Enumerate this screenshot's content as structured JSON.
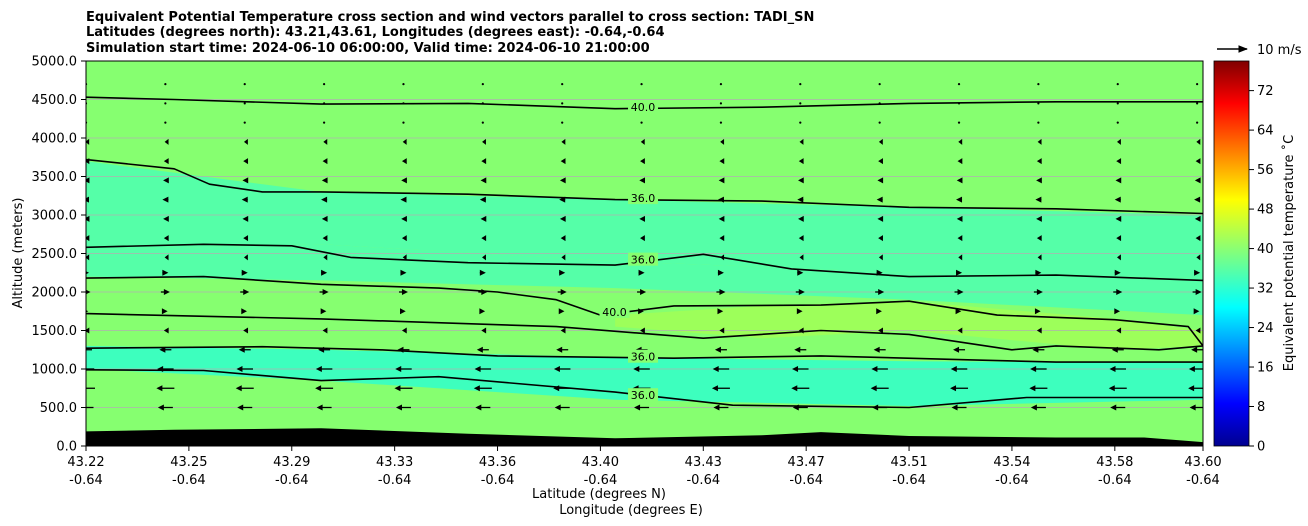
{
  "chart_data": {
    "type": "contour-cross-section",
    "title_lines": [
      "Equivalent Potential Temperature cross section and wind vectors parallel to cross section: TADI_SN",
      "Latitudes (degrees north): 43.21,43.61, Longitudes (degrees east): -0.64,-0.64",
      "Simulation start time: 2024-06-10 06:00:00, Valid time: 2024-06-10 21:00:00"
    ],
    "xlabel_lines": [
      "Latitude (degrees N)",
      "Longitude (degrees E)"
    ],
    "ylabel": "Altitude (meters)",
    "x_ticks": [
      {
        "lat": "43.22",
        "lon": "-0.64"
      },
      {
        "lat": "43.25",
        "lon": "-0.64"
      },
      {
        "lat": "43.29",
        "lon": "-0.64"
      },
      {
        "lat": "43.33",
        "lon": "-0.64"
      },
      {
        "lat": "43.36",
        "lon": "-0.64"
      },
      {
        "lat": "43.40",
        "lon": "-0.64"
      },
      {
        "lat": "43.43",
        "lon": "-0.64"
      },
      {
        "lat": "43.47",
        "lon": "-0.64"
      },
      {
        "lat": "43.51",
        "lon": "-0.64"
      },
      {
        "lat": "43.54",
        "lon": "-0.64"
      },
      {
        "lat": "43.58",
        "lon": "-0.64"
      },
      {
        "lat": "43.60",
        "lon": "-0.64"
      }
    ],
    "x_tick_values": [
      43.22,
      43.255,
      43.29,
      43.325,
      43.36,
      43.395,
      43.43,
      43.465,
      43.5,
      43.535,
      43.57,
      43.6
    ],
    "xlim": [
      43.22,
      43.6
    ],
    "y_ticks": [
      "0.0",
      "500.0",
      "1000.0",
      "1500.0",
      "2000.0",
      "2500.0",
      "3000.0",
      "3500.0",
      "4000.0",
      "4500.0",
      "5000.0"
    ],
    "ylim": [
      0,
      5000
    ],
    "grid": "horizontal",
    "colorbar": {
      "label": "Equivalent potential temperature ˚C",
      "ticks": [
        "0",
        "8",
        "16",
        "24",
        "32",
        "40",
        "48",
        "56",
        "64",
        "72"
      ],
      "range": [
        0,
        78
      ],
      "colormap": "jet"
    },
    "quiver_key": "10 m/s",
    "background_field_color": "#86ff70",
    "terrain_color": "#000000",
    "field_bands": [
      {
        "color": "#3dffbe",
        "theta_e": 33,
        "x": [
          43.22,
          43.3,
          43.4,
          43.5,
          43.6
        ],
        "y_top": [
          1300,
          1250,
          1150,
          1100,
          1080
        ],
        "y_bottom": [
          1000,
          850,
          600,
          520,
          600
        ]
      },
      {
        "color": "#55ffa8",
        "theta_e": 35,
        "x": [
          43.22,
          43.3,
          43.4,
          43.5,
          43.6
        ],
        "y_top": [
          2550,
          2620,
          2400,
          2250,
          2180
        ],
        "y_bottom": [
          2200,
          2150,
          2050,
          1900,
          1700
        ]
      },
      {
        "color": "#55ffa8",
        "theta_e": 35,
        "x": [
          43.22,
          43.3,
          43.4,
          43.5,
          43.6
        ],
        "y_top": [
          3700,
          3300,
          3200,
          3100,
          3000
        ],
        "y_bottom": [
          2550,
          2620,
          2400,
          2250,
          2180
        ]
      },
      {
        "color": "#9dff5a",
        "theta_e": 41,
        "x": [
          43.4,
          43.45,
          43.5,
          43.57,
          43.6
        ],
        "y_top": [
          1700,
          1820,
          1880,
          1650,
          1500
        ],
        "y_bottom": [
          1550,
          1400,
          1500,
          1250,
          1300
        ]
      }
    ],
    "contours": [
      {
        "level_label": "40.0",
        "x": [
          43.22,
          43.25,
          43.3,
          43.35,
          43.4,
          43.45,
          43.5,
          43.55,
          43.6
        ],
        "y": [
          4530,
          4500,
          4440,
          4450,
          4380,
          4400,
          4450,
          4470,
          4470
        ]
      },
      {
        "level_label": "36.0",
        "x": [
          43.22,
          43.25,
          43.262,
          43.28,
          43.3,
          43.35,
          43.4,
          43.45,
          43.5,
          43.55,
          43.6
        ],
        "y": [
          3720,
          3600,
          3400,
          3300,
          3300,
          3270,
          3200,
          3180,
          3100,
          3080,
          3020
        ]
      },
      {
        "level_label": "36.0",
        "x": [
          43.22,
          43.26,
          43.29,
          43.31,
          43.35,
          43.4,
          43.43,
          43.46,
          43.5,
          43.55,
          43.6
        ],
        "y": [
          2580,
          2620,
          2600,
          2450,
          2380,
          2350,
          2490,
          2300,
          2200,
          2220,
          2150
        ]
      },
      {
        "level_label": "40.0",
        "x": [
          43.22,
          43.26,
          43.3,
          43.34,
          43.36,
          43.38,
          43.395,
          43.42,
          43.47,
          43.5,
          43.53,
          43.57,
          43.595,
          43.6,
          43.585,
          43.55,
          43.535,
          43.5,
          43.47,
          43.43,
          43.38,
          43.3,
          43.22
        ],
        "y": [
          2180,
          2200,
          2100,
          2050,
          2000,
          1900,
          1700,
          1820,
          1830,
          1880,
          1700,
          1640,
          1550,
          1300,
          1250,
          1300,
          1250,
          1450,
          1500,
          1400,
          1550,
          1650,
          1720
        ]
      },
      {
        "level_label": "36.0",
        "x": [
          43.22,
          43.28,
          43.32,
          43.36,
          43.42,
          43.47,
          43.52,
          43.55,
          43.6
        ],
        "y": [
          1270,
          1290,
          1250,
          1170,
          1140,
          1170,
          1120,
          1090,
          1090
        ]
      },
      {
        "level_label": "36.0",
        "x": [
          43.22,
          43.26,
          43.3,
          43.34,
          43.4,
          43.44,
          43.5,
          43.54,
          43.6
        ],
        "y": [
          990,
          980,
          850,
          900,
          700,
          530,
          500,
          630,
          630
        ]
      }
    ],
    "contour_label_positions": [
      {
        "level_label": "40.0",
        "x": 43.4095,
        "y": 4400
      },
      {
        "level_label": "36.0",
        "x": 43.4095,
        "y": 3220
      },
      {
        "level_label": "36.0",
        "x": 43.4095,
        "y": 2420
      },
      {
        "level_label": "40.0",
        "x": 43.3998,
        "y": 1740
      },
      {
        "level_label": "36.0",
        "x": 43.4095,
        "y": 1160
      },
      {
        "level_label": "36.0",
        "x": 43.4095,
        "y": 660
      }
    ],
    "terrain": {
      "x": [
        43.22,
        43.25,
        43.3,
        43.35,
        43.4,
        43.45,
        43.47,
        43.5,
        43.55,
        43.58,
        43.6
      ],
      "y": [
        190,
        210,
        230,
        160,
        100,
        140,
        180,
        130,
        110,
        110,
        50
      ]
    },
    "wind_vectors": {
      "rows_altitude": [
        4700,
        4450,
        4200,
        3950,
        3700,
        3450,
        3200,
        2950,
        2700,
        2450,
        2250,
        2000,
        1750,
        1500,
        1250,
        1000,
        750,
        500
      ],
      "columns_x": [
        43.22,
        43.247,
        43.274,
        43.301,
        43.328,
        43.355,
        43.382,
        43.409,
        43.436,
        43.463,
        43.49,
        43.517,
        43.544,
        43.571,
        43.598
      ],
      "u_ms_by_row": [
        0.2,
        0.3,
        0.3,
        -0.5,
        -1.0,
        -1.5,
        -2.0,
        -1.5,
        -1.0,
        -0.5,
        2.0,
        3.0,
        1.5,
        -1.0,
        -4.0,
        -5.5,
        -6.0,
        -5.0
      ]
    }
  }
}
